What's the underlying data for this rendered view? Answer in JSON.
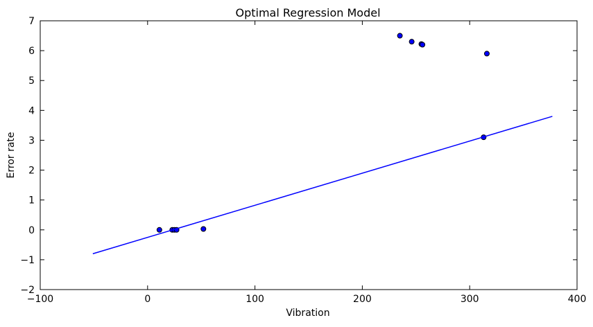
{
  "chart_data": {
    "type": "scatter",
    "title": "Optimal Regression Model",
    "xlabel": "Vibration",
    "ylabel": "Error rate",
    "xlim": [
      -100,
      400
    ],
    "ylim": [
      -2,
      7
    ],
    "xticks": [
      -100,
      0,
      100,
      200,
      300,
      400
    ],
    "yticks": [
      -2,
      -1,
      0,
      1,
      2,
      3,
      4,
      5,
      6,
      7
    ],
    "xtick_labels": [
      "−100",
      "0",
      "100",
      "200",
      "300",
      "400"
    ],
    "ytick_labels": [
      "−2",
      "−1",
      "0",
      "1",
      "2",
      "3",
      "4",
      "5",
      "6",
      "7"
    ],
    "grid": false,
    "series": [
      {
        "type": "scatter",
        "color": "#0000ff",
        "edge_color": "#000000",
        "points": [
          {
            "x": 11,
            "y": 0.0
          },
          {
            "x": 23,
            "y": 0.0
          },
          {
            "x": 25,
            "y": 0.0
          },
          {
            "x": 27,
            "y": 0.0
          },
          {
            "x": 52,
            "y": 0.03
          },
          {
            "x": 235,
            "y": 6.5
          },
          {
            "x": 246,
            "y": 6.3
          },
          {
            "x": 255,
            "y": 6.22
          },
          {
            "x": 256,
            "y": 6.2
          },
          {
            "x": 313,
            "y": 3.1
          },
          {
            "x": 316,
            "y": 5.9
          }
        ]
      },
      {
        "type": "line",
        "color": "#0000ff",
        "points": [
          {
            "x": -51,
            "y": -0.8
          },
          {
            "x": 377,
            "y": 3.8
          }
        ]
      }
    ]
  }
}
